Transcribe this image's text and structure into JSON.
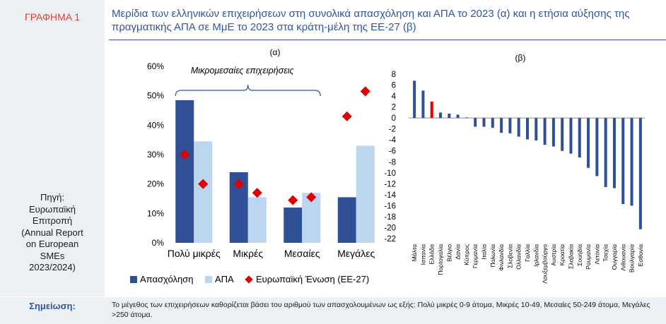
{
  "figure_label": "ΓΡΑΦΗΜΑ 1",
  "title": "Μερίδια των ελληνικών επιχειρήσεων στη συνολικά απασχόληση και ΑΠΑ το 2023 (α) και η ετήσια αύξησης της πραγματικής ΑΠΑ σε ΜμΕ το 2023 στα κράτη-μέλη της ΕΕ-27 (β)",
  "source": "Πηγή:\nΕυρωπαϊκή\nΕπιτροπή\n(Annual Report\non European\nSMEs\n2023/2024)",
  "note_label": "Σημείωση:",
  "note_text": "Το μέγεθος των επιχειρήσεων καθορίζεται βάσει του αριθμού των απασχολουμένων ως εξής: Πολύ μικρές 0-9 άτομα, Μικρές 10-49, Μεσαίες 50-249 άτομα, Μεγάλες >250 άτομα.",
  "colors": {
    "employment": "#2f4f96",
    "gva": "#bcd6f0",
    "eu": "#e00000",
    "axis_text": "#000000"
  },
  "chart_data": [
    {
      "type": "bar",
      "panel_label": "(α)",
      "annotation": "Μικρομεσαίες επιχειρήσεις",
      "categories": [
        "Πολύ μικρές",
        "Μικρές",
        "Μεσαίες",
        "Μεγάλες"
      ],
      "ylim": [
        0,
        60
      ],
      "yticks": [
        "0%",
        "10%",
        "20%",
        "30%",
        "40%",
        "50%",
        "60%"
      ],
      "series": [
        {
          "name": "Απασχόληση",
          "kind": "bar",
          "values": [
            48.5,
            24,
            12,
            15.5
          ]
        },
        {
          "name": "ΑΠΑ",
          "kind": "bar",
          "values": [
            34.5,
            15.5,
            17,
            33
          ]
        },
        {
          "name": "Ευρωπαϊκή Ένωση (ΕΕ-27)",
          "kind": "marker",
          "values": [
            [
              30,
              20
            ],
            [
              20,
              17
            ],
            [
              14.5,
              15.5
            ],
            [
              43,
              51.5
            ]
          ]
        }
      ]
    },
    {
      "type": "bar",
      "panel_label": "(β)",
      "ylim": [
        -22,
        8
      ],
      "yticks": [
        "-22",
        "-20",
        "-18",
        "-16",
        "-14",
        "-12",
        "-10",
        "-8",
        "-6",
        "-4",
        "-2",
        "0",
        "2",
        "4",
        "6",
        "8"
      ],
      "categories": [
        "Μάλτα",
        "Ισπανία",
        "Ελλάδα",
        "Πορτογαλία",
        "Βέλγιο",
        "Δανία",
        "Κύπρος",
        "Γερμανία",
        "Ιταλία",
        "Πολωνία",
        "Φινλανδία",
        "Σλοβενία",
        "Ολλανδία",
        "Γαλλία",
        "Ιρλανδία",
        "Λουξεμβούργο",
        "Αυστρία",
        "Κροατία",
        "Σλοβακία",
        "Σουηδία",
        "Ρουμανία",
        "Λετονία",
        "Τσεχία",
        "Ουγγαρία",
        "Λιθουανία",
        "Βουλγαρία",
        "Εσθονία"
      ],
      "values": [
        6.8,
        5.0,
        3.0,
        1.0,
        0.8,
        0.6,
        0.1,
        -1.6,
        -1.6,
        -1.8,
        -2.7,
        -2.8,
        -3.4,
        -3.9,
        -4.1,
        -4.9,
        -5.2,
        -6.0,
        -6.5,
        -7.2,
        -9.1,
        -10.6,
        -12.6,
        -12.8,
        -15.7,
        -16.0,
        -20.3
      ],
      "highlight": "Ελλάδα"
    }
  ]
}
